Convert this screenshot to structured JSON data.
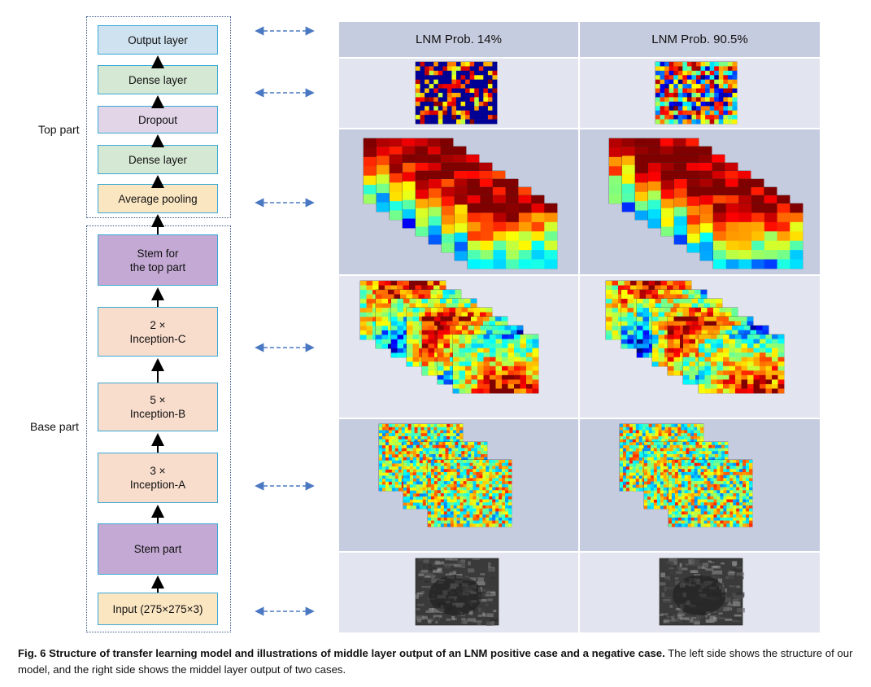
{
  "groups": {
    "top_label": "Top part",
    "base_label": "Base part"
  },
  "layers": [
    {
      "id": "output",
      "label": "Output layer",
      "color": "#cfe2f0"
    },
    {
      "id": "dense2",
      "label": "Dense layer",
      "color": "#d5e8d4"
    },
    {
      "id": "dropout",
      "label": "Dropout",
      "color": "#e1d5e7"
    },
    {
      "id": "dense1",
      "label": "Dense layer",
      "color": "#d5e8d4"
    },
    {
      "id": "avgpool",
      "label": "Average pooling",
      "color": "#fbe6c2"
    },
    {
      "id": "stemtop",
      "label": "Stem for\nthe top part",
      "color": "#c3a9d3"
    },
    {
      "id": "incc",
      "label": "2 ×\nInception-C",
      "color": "#f8dccc"
    },
    {
      "id": "incb",
      "label": "5 ×\nInception-B",
      "color": "#f8dccc"
    },
    {
      "id": "inca",
      "label": "3 ×\nInception-A",
      "color": "#f8dccc"
    },
    {
      "id": "stem",
      "label": "Stem part",
      "color": "#c3a9d3"
    },
    {
      "id": "input",
      "label": "Input (275×275×3)",
      "color": "#fbe6c2"
    }
  ],
  "columns": {
    "left": "LNM Prob. 14%",
    "right": "LNM Prob. 90.5%"
  },
  "rows": [
    {
      "id": "dense-output",
      "kind": "single-heatmap"
    },
    {
      "id": "avgpool-output",
      "kind": "stack-coarse"
    },
    {
      "id": "inception-c-output",
      "kind": "stack-medium"
    },
    {
      "id": "inception-a-output",
      "kind": "stack-fine"
    },
    {
      "id": "input-image",
      "kind": "ultrasound"
    }
  ],
  "colors": {
    "dark_row": "#c6ccdf",
    "light_row": "#e2e5ef",
    "arrow": "#4a78c2",
    "box_border": "#3aa9d6"
  },
  "caption": {
    "bold": "Fig. 6 Structure of transfer learning model and illustrations of middle layer output of an LNM positive case and a negative case.",
    "rest": " The left side shows the structure of our model, and the right side shows the middel layer output of two cases."
  }
}
